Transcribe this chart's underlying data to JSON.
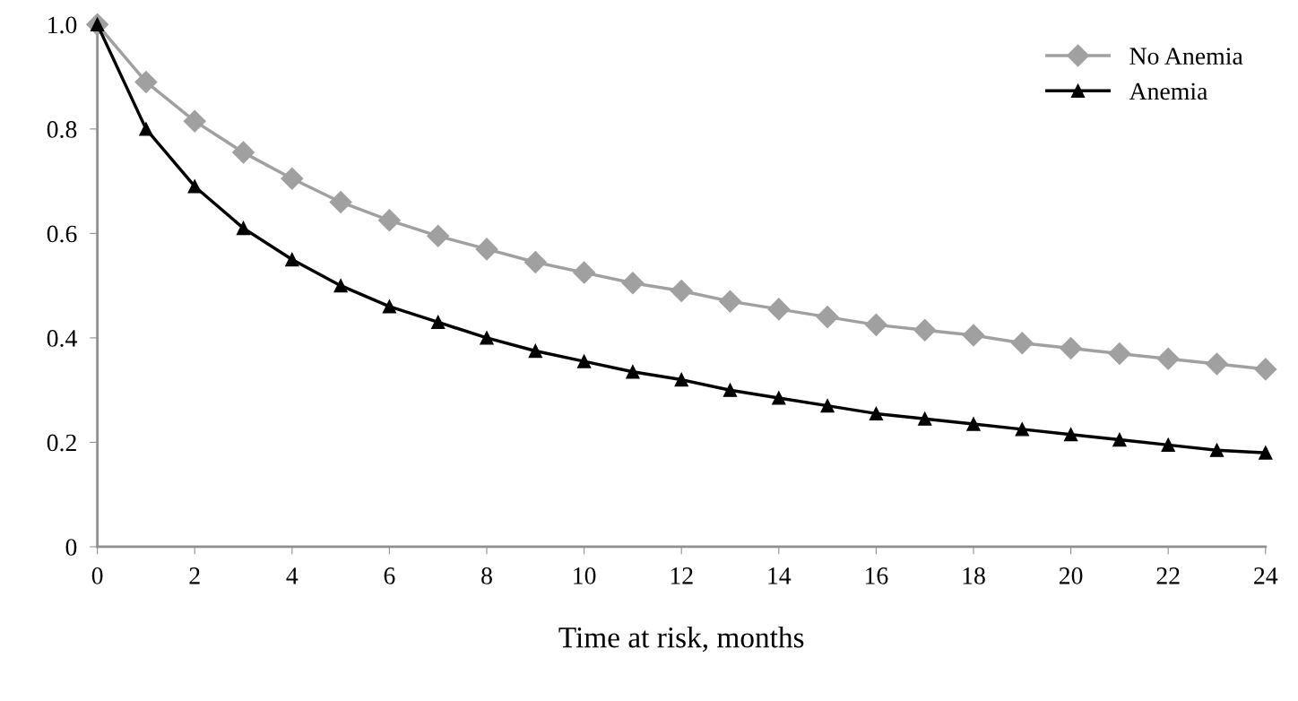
{
  "chart_data": {
    "type": "line",
    "xlabel": "Time at risk, months",
    "x": [
      0,
      1,
      2,
      3,
      4,
      5,
      6,
      7,
      8,
      9,
      10,
      11,
      12,
      13,
      14,
      15,
      16,
      17,
      18,
      19,
      20,
      21,
      22,
      23,
      24
    ],
    "series": [
      {
        "name": "No Anemia",
        "color": "#a0a0a0",
        "marker": "diamond",
        "values": [
          1.0,
          0.89,
          0.815,
          0.755,
          0.705,
          0.66,
          0.625,
          0.595,
          0.57,
          0.545,
          0.525,
          0.505,
          0.49,
          0.47,
          0.455,
          0.44,
          0.425,
          0.415,
          0.405,
          0.39,
          0.38,
          0.37,
          0.36,
          0.35,
          0.34
        ]
      },
      {
        "name": "Anemia",
        "color": "#000000",
        "marker": "triangle",
        "values": [
          1.0,
          0.8,
          0.69,
          0.61,
          0.55,
          0.5,
          0.46,
          0.43,
          0.4,
          0.375,
          0.355,
          0.335,
          0.32,
          0.3,
          0.285,
          0.27,
          0.255,
          0.245,
          0.235,
          0.225,
          0.215,
          0.205,
          0.195,
          0.185,
          0.18
        ]
      }
    ],
    "xlim": [
      0,
      24
    ],
    "xticks": [
      0,
      2,
      4,
      6,
      8,
      10,
      12,
      14,
      16,
      18,
      20,
      22,
      24
    ],
    "ylim": [
      0,
      1
    ],
    "yticks": [
      0,
      0.2,
      0.4,
      0.6,
      0.8,
      {
        "value": 1,
        "label": "1.0"
      }
    ],
    "grid": false,
    "legend": "top right",
    "line_style": "solid"
  }
}
